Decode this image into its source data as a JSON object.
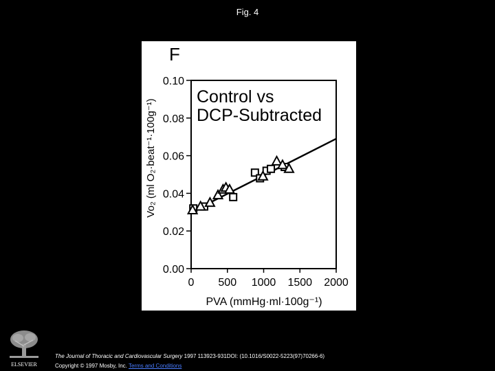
{
  "slide": {
    "title": "Fig. 4"
  },
  "footer": {
    "journal": "The Journal of Thoracic and Cardiovascular Surgery",
    "citation_rest": " 1997 113923-931DOI: (10.1016/S0022-5223(97)70266-6)",
    "copyright": "Copyright © 1997 Mosby, Inc. ",
    "terms_link": "Terms and Conditions",
    "logo_text": "ELSEVIER"
  },
  "colors": {
    "background": "#000000",
    "panel": "#ffffff",
    "ink": "#000000",
    "link": "#4a7dff"
  },
  "chart_data": {
    "type": "scatter",
    "panel_label": "F",
    "title": "Control vs DCP-Subtracted",
    "title_lines": [
      "Control vs",
      "DCP-Subtracted"
    ],
    "xlabel": "PVA (mmHg·ml·100g⁻¹)",
    "ylabel": "Vo₂ (ml O₂·beat⁻¹·100g⁻¹)",
    "xlim": [
      0,
      2000
    ],
    "ylim": [
      0,
      0.1
    ],
    "x_ticks": [
      0,
      500,
      1000,
      1500,
      2000
    ],
    "x_tick_labels": [
      "0",
      "500",
      "1000",
      "1500",
      "2000"
    ],
    "y_ticks": [
      0,
      0.02,
      0.04,
      0.06,
      0.08,
      0.1
    ],
    "y_tick_labels": [
      "0.00",
      "0.02",
      "0.04",
      "0.06",
      "0.08",
      "0.10"
    ],
    "series": [
      {
        "name": "Control",
        "marker": "square",
        "x": [
          30,
          180,
          580,
          880,
          950,
          1040,
          1100,
          1290
        ],
        "y": [
          0.032,
          0.033,
          0.038,
          0.051,
          0.048,
          0.052,
          0.053,
          0.054
        ]
      },
      {
        "name": "DCP-Subtracted",
        "marker": "triangle",
        "x": [
          20,
          130,
          260,
          370,
          440,
          480,
          530,
          990,
          1180,
          1260,
          1350
        ],
        "y": [
          0.031,
          0.033,
          0.035,
          0.039,
          0.042,
          0.043,
          0.042,
          0.049,
          0.057,
          0.055,
          0.053
        ]
      }
    ],
    "regression_line": {
      "x": [
        0,
        2000
      ],
      "y": [
        0.03,
        0.069
      ]
    }
  }
}
